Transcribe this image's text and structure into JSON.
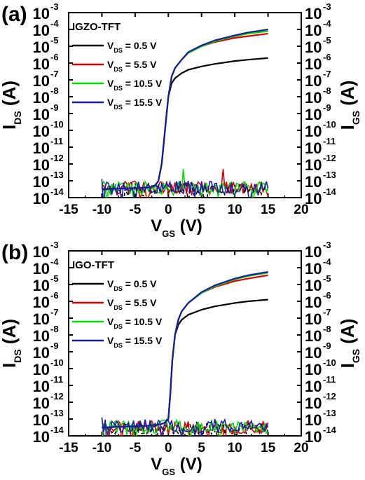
{
  "figure": {
    "panels": [
      "(a)",
      "(b)"
    ]
  },
  "chart_data": [
    {
      "type": "line",
      "panel_label": "(a)",
      "title": "IGZO-TFT",
      "xlabel": "V_GS (V)",
      "ylabel_left": "I_DS (A)",
      "ylabel_right": "I_GS (A)",
      "xlim": [
        -15,
        20
      ],
      "xticks": [
        -15,
        -10,
        -5,
        0,
        5,
        10,
        15,
        20
      ],
      "ylim_log10": [
        -14,
        -3
      ],
      "yscale": "log",
      "yticks_exponent": [
        -14,
        -13,
        -12,
        -11,
        -10,
        -9,
        -8,
        -7,
        -6,
        -5,
        -4,
        -3
      ],
      "grid": false,
      "legend_position": "top-left",
      "ids_x": [
        -10,
        -3,
        -2,
        -1.5,
        -1,
        -0.5,
        0,
        0.5,
        1,
        2,
        3,
        5,
        7,
        10,
        12,
        15
      ],
      "series": [
        {
          "name": "V_DS = 0.5 V",
          "color": "#000000",
          "ids_log10": [
            -13.5,
            -13.4,
            -13.3,
            -13.0,
            -12.0,
            -10.0,
            -8.0,
            -7.2,
            -6.9,
            -6.6,
            -6.4,
            -6.2,
            -6.05,
            -5.88,
            -5.8,
            -5.7
          ],
          "igs_base": -13.5,
          "spikes": []
        },
        {
          "name": "V_DS = 5.5 V",
          "color": "#dd0000",
          "ids_log10": [
            -13.5,
            -13.4,
            -13.3,
            -13.0,
            -12.0,
            -10.0,
            -8.0,
            -6.8,
            -6.3,
            -5.8,
            -5.4,
            -5.0,
            -4.75,
            -4.5,
            -4.4,
            -4.25
          ],
          "igs_base": -13.4,
          "spikes": [
            [
              8.3,
              -12.3
            ]
          ]
        },
        {
          "name": "V_DS = 10.5 V",
          "color": "#00dd00",
          "ids_log10": [
            -13.5,
            -13.4,
            -13.3,
            -13.0,
            -12.0,
            -10.0,
            -8.0,
            -6.8,
            -6.3,
            -5.8,
            -5.4,
            -5.0,
            -4.7,
            -4.4,
            -4.25,
            -4.1
          ],
          "igs_base": -13.45,
          "spikes": [
            [
              2.3,
              -12.3
            ]
          ]
        },
        {
          "name": "V_DS = 15.5 V",
          "color": "#1a1aaa",
          "ids_log10": [
            -13.5,
            -13.4,
            -13.3,
            -13.0,
            -12.0,
            -10.0,
            -8.0,
            -6.8,
            -6.3,
            -5.8,
            -5.35,
            -4.95,
            -4.65,
            -4.35,
            -4.18,
            -4.0
          ],
          "igs_base": -13.4,
          "spikes": [
            [
              -10,
              -12.9
            ]
          ]
        }
      ]
    },
    {
      "type": "line",
      "panel_label": "(b)",
      "title": "IGO-TFT",
      "xlabel": "V_GS (V)",
      "ylabel_left": "I_DS (A)",
      "ylabel_right": "I_GS (A)",
      "xlim": [
        -15,
        20
      ],
      "xticks": [
        -15,
        -10,
        -5,
        0,
        5,
        10,
        15,
        20
      ],
      "ylim_log10": [
        -14,
        -3
      ],
      "yscale": "log",
      "yticks_exponent": [
        -14,
        -13,
        -12,
        -11,
        -10,
        -9,
        -8,
        -7,
        -6,
        -5,
        -4,
        -3
      ],
      "grid": false,
      "legend_position": "top-left",
      "ids_x": [
        -10,
        -3,
        -1,
        -0.5,
        0,
        0.3,
        0.6,
        1,
        1.5,
        2,
        3,
        5,
        7,
        10,
        12,
        15
      ],
      "series": [
        {
          "name": "V_DS = 0.5 V",
          "color": "#000000",
          "ids_log10": [
            -13.5,
            -13.4,
            -13.3,
            -13.2,
            -13.0,
            -11.5,
            -9.5,
            -8.0,
            -7.4,
            -7.1,
            -6.8,
            -6.5,
            -6.3,
            -6.1,
            -6.0,
            -5.9
          ],
          "igs_base": -13.55,
          "spikes": []
        },
        {
          "name": "V_DS = 5.5 V",
          "color": "#dd0000",
          "ids_log10": [
            -13.5,
            -13.4,
            -13.3,
            -13.2,
            -13.0,
            -11.5,
            -9.5,
            -8.0,
            -7.1,
            -6.6,
            -6.1,
            -5.5,
            -5.15,
            -4.8,
            -4.65,
            -4.45
          ],
          "igs_base": -13.5,
          "spikes": []
        },
        {
          "name": "V_DS = 10.5 V",
          "color": "#00dd00",
          "ids_log10": [
            -13.5,
            -13.4,
            -13.3,
            -13.2,
            -13.0,
            -11.5,
            -9.5,
            -8.0,
            -7.1,
            -6.6,
            -6.1,
            -5.5,
            -5.1,
            -4.7,
            -4.5,
            -4.3
          ],
          "igs_base": -13.45,
          "spikes": []
        },
        {
          "name": "V_DS = 15.5 V",
          "color": "#1a1aaa",
          "ids_log10": [
            -13.5,
            -13.4,
            -13.3,
            -13.2,
            -13.0,
            -11.5,
            -9.5,
            -8.0,
            -7.1,
            -6.6,
            -6.1,
            -5.45,
            -5.05,
            -4.65,
            -4.45,
            -4.25
          ],
          "igs_base": -13.4,
          "spikes": [
            [
              -10,
              -12.9
            ]
          ]
        }
      ]
    }
  ]
}
